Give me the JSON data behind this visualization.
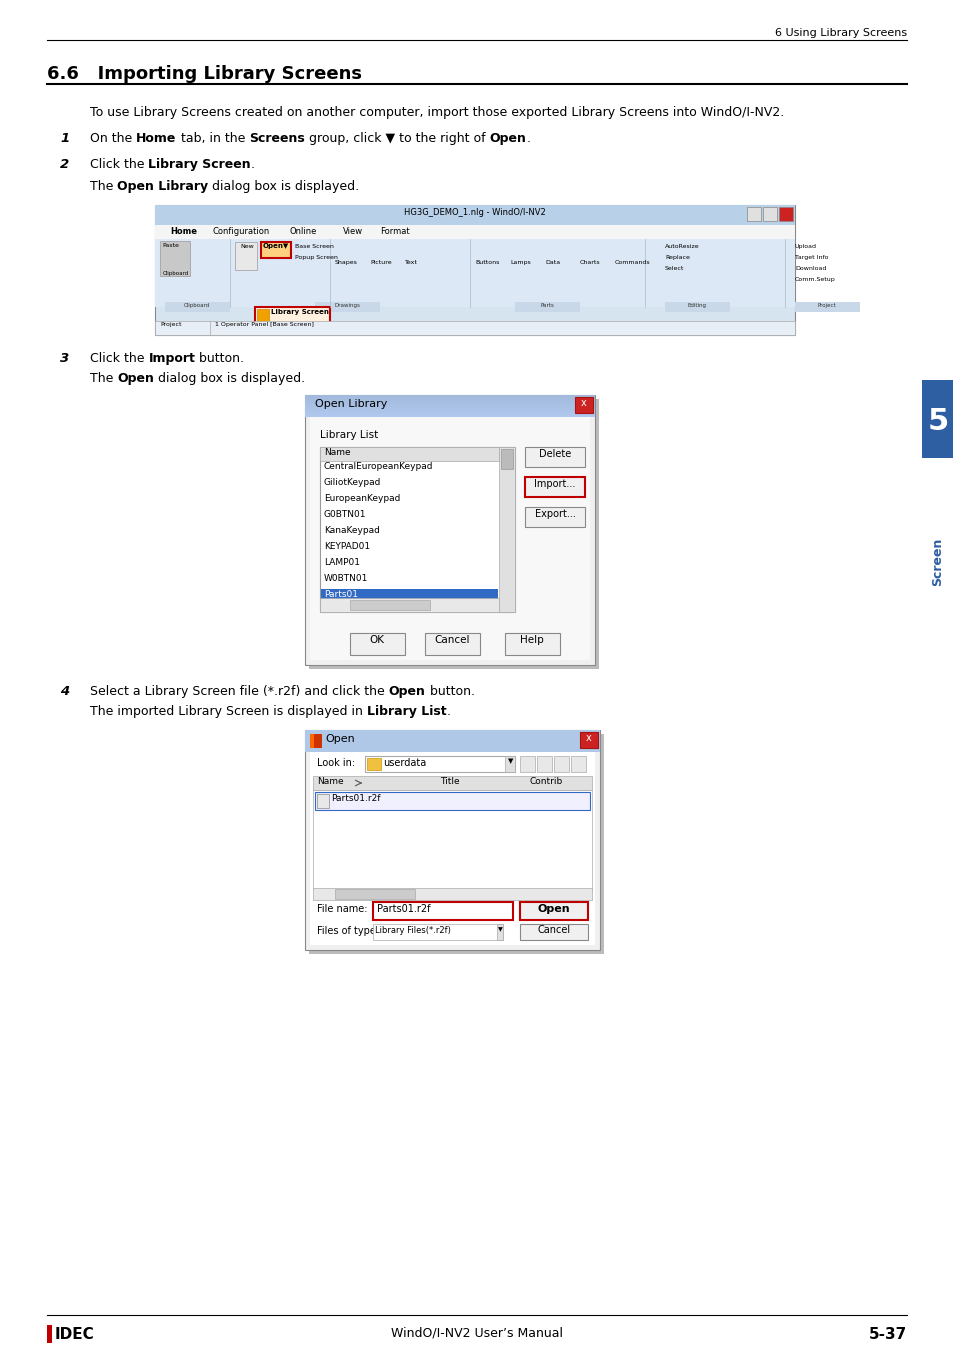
{
  "page_header_right": "6 Using Library Screens",
  "section_title": "6.6   Importing Library Screens",
  "intro_text": "To use Library Screens created on another computer, import those exported Library Screens into WindO/I-NV2.",
  "step1_parts": [
    {
      "text": "On the ",
      "bold": false
    },
    {
      "text": "Home",
      "bold": true
    },
    {
      "text": " tab, in the ",
      "bold": false
    },
    {
      "text": "Screens",
      "bold": true
    },
    {
      "text": " group, click ▼ to the right of ",
      "bold": false
    },
    {
      "text": "Open",
      "bold": true
    },
    {
      "text": ".",
      "bold": false
    }
  ],
  "step2_parts": [
    {
      "text": "Click the ",
      "bold": false
    },
    {
      "text": "Library Screen",
      "bold": true
    },
    {
      "text": ".",
      "bold": false
    }
  ],
  "step2_sub": [
    {
      "text": "The ",
      "bold": false
    },
    {
      "text": "Open Library",
      "bold": true
    },
    {
      "text": " dialog box is displayed.",
      "bold": false
    }
  ],
  "step3_parts": [
    {
      "text": "Click the ",
      "bold": false
    },
    {
      "text": "Import",
      "bold": true
    },
    {
      "text": " button.",
      "bold": false
    }
  ],
  "step3_sub": [
    {
      "text": "The ",
      "bold": false
    },
    {
      "text": "Open",
      "bold": true
    },
    {
      "text": " dialog box is displayed.",
      "bold": false
    }
  ],
  "step4_parts": [
    {
      "text": "Select a Library Screen file (*.r2f) and click the ",
      "bold": false
    },
    {
      "text": "Open",
      "bold": true
    },
    {
      "text": " button.",
      "bold": false
    }
  ],
  "step4_sub": [
    {
      "text": "The imported Library Screen is displayed in ",
      "bold": false
    },
    {
      "text": "Library List",
      "bold": true
    },
    {
      "text": ".",
      "bold": false
    }
  ],
  "tab_label": "5",
  "tab_color": "#2e5fa3",
  "footer_left": "IDEC",
  "footer_center": "WindO/I-NV2 User’s Manual",
  "footer_right": "5-37",
  "bg": "#ffffff",
  "fg": "#000000",
  "red": "#c00000",
  "list_items": [
    "CentralEuropeanKeypad",
    "GiliotKeypad",
    "EuropeanKeypad",
    "G0BTN01",
    "KanaKeypad",
    "KEYPAD01",
    "LAMP01",
    "W0BTN01",
    "Parts01"
  ],
  "selected_item": "Parts01"
}
